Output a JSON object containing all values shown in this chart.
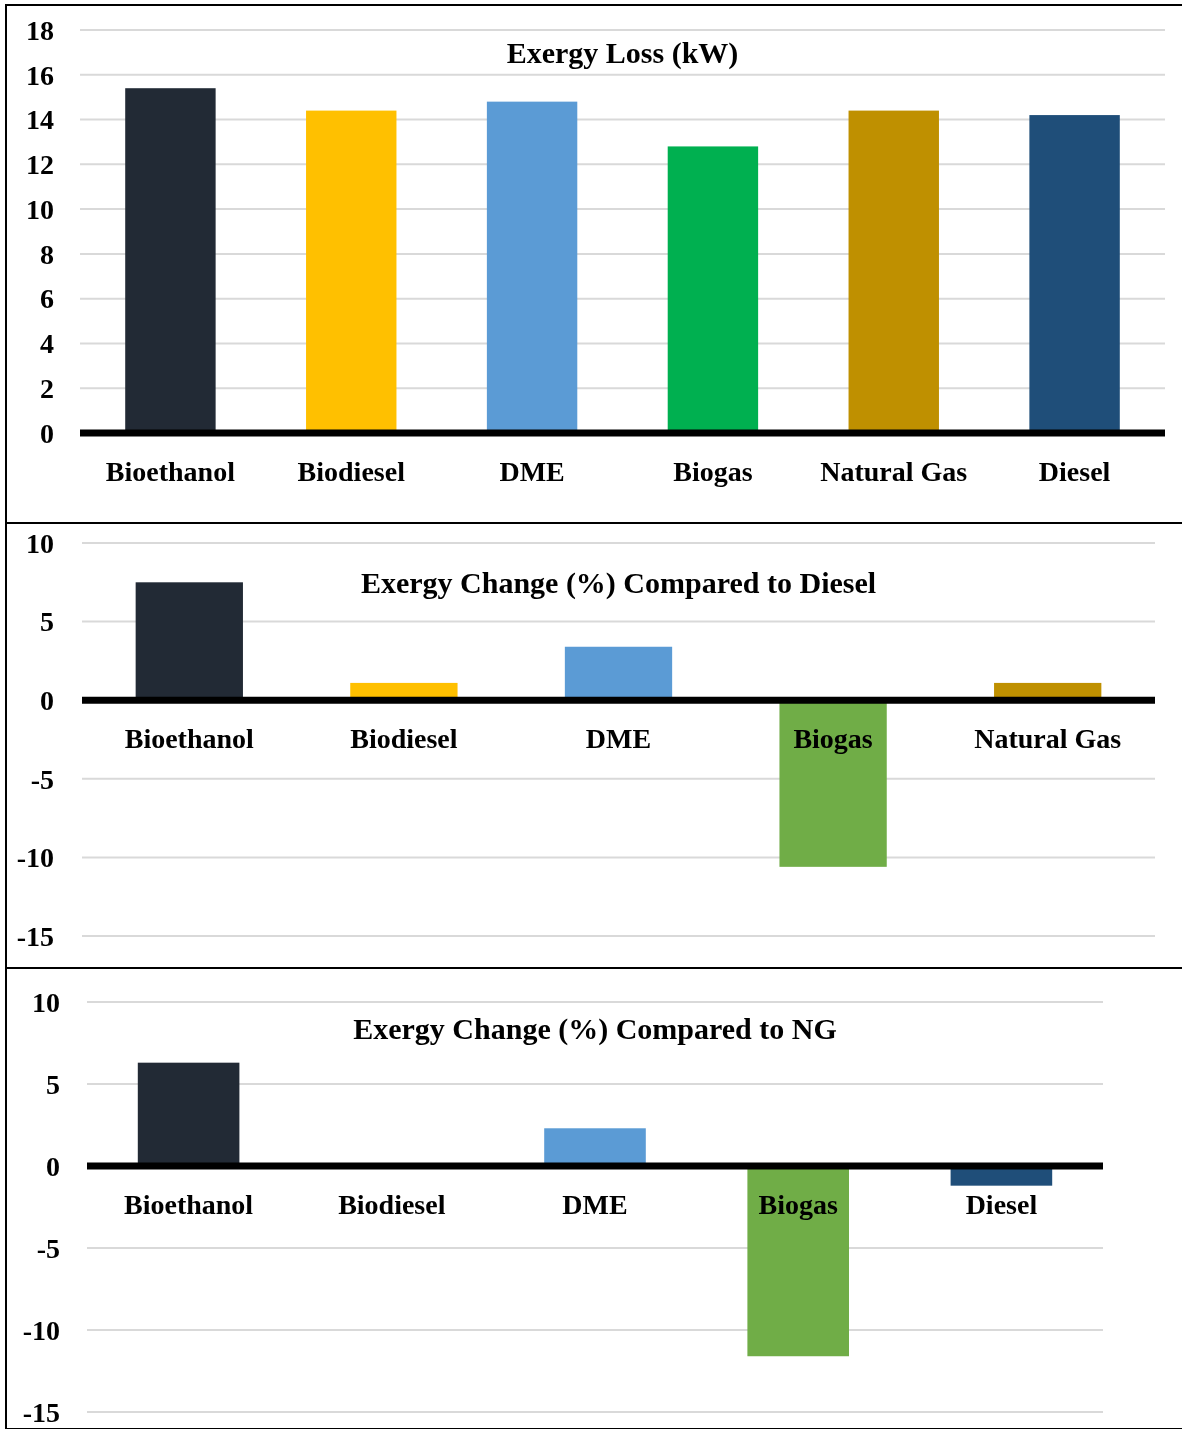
{
  "chart_data": [
    {
      "type": "bar",
      "title": "Exergy Loss (kW)",
      "categories": [
        "Bioethanol",
        "Biodiesel",
        "DME",
        "Biogas",
        "Natural Gas",
        "Diesel"
      ],
      "values": [
        15.4,
        14.4,
        14.8,
        12.8,
        14.4,
        14.2
      ],
      "colors": [
        "#222a35",
        "#ffc000",
        "#5b9bd5",
        "#00b050",
        "#bf9000",
        "#1f4e79"
      ],
      "ylim": [
        0,
        18
      ],
      "yticks": [
        0,
        2,
        4,
        6,
        8,
        10,
        12,
        14,
        16,
        18
      ],
      "grid": "y"
    },
    {
      "type": "bar",
      "title": "Exergy Change (%) Compared to Diesel",
      "categories": [
        "Bioethanol",
        "Biodiesel",
        "DME",
        "Biogas",
        "Natural Gas"
      ],
      "values": [
        7.5,
        1.1,
        3.4,
        -10.6,
        1.1
      ],
      "colors": [
        "#222a35",
        "#ffc000",
        "#5b9bd5",
        "#70ad47",
        "#bf9000"
      ],
      "ylim": [
        -15,
        10
      ],
      "yticks": [
        -15,
        -10,
        -5,
        0,
        5,
        10
      ],
      "grid": "y"
    },
    {
      "type": "bar",
      "title": "Exergy Change (%) Compared to NG",
      "categories": [
        "Bioethanol",
        "Biodiesel",
        "DME",
        "Biogas",
        "Diesel"
      ],
      "values": [
        6.3,
        0,
        2.3,
        -11.6,
        -1.2
      ],
      "colors": [
        "#222a35",
        "#ffc000",
        "#5b9bd5",
        "#70ad47",
        "#1f4e79"
      ],
      "ylim": [
        -15,
        10
      ],
      "yticks": [
        -15,
        -10,
        -5,
        0,
        5,
        10
      ],
      "grid": "y"
    }
  ]
}
